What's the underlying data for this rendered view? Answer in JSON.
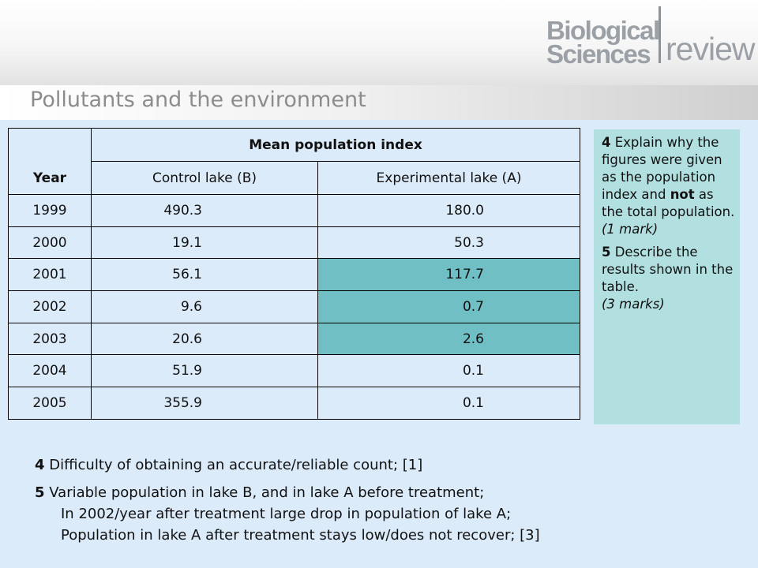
{
  "slide": {
    "title": "Pollutants and the environment",
    "logo": {
      "line1": "Biological",
      "line2": "Sciences",
      "word": "review"
    }
  },
  "table": {
    "year_header": "Year",
    "group_header": "Mean population index",
    "col_b": "Control lake (B)",
    "col_a": "Experimental lake (A)",
    "rows": [
      {
        "year": "1999",
        "b": "490.3",
        "a": "180.0",
        "highlight": false
      },
      {
        "year": "2000",
        "b": "19.1",
        "a": "50.3",
        "highlight": false
      },
      {
        "year": "2001",
        "b": "56.1",
        "a": "117.7",
        "highlight": true
      },
      {
        "year": "2002",
        "b": "9.6",
        "a": "0.7",
        "highlight": true
      },
      {
        "year": "2003",
        "b": "20.6",
        "a": "2.6",
        "highlight": true
      },
      {
        "year": "2004",
        "b": "51.9",
        "a": "0.1",
        "highlight": false
      },
      {
        "year": "2005",
        "b": "355.9",
        "a": "0.1",
        "highlight": false
      }
    ],
    "highlight_color": "#6fbfc4"
  },
  "questions": {
    "q4_num": "4",
    "q4_text_a": " Explain why the figures were given as the population index and ",
    "q4_bold": "not",
    "q4_text_b": " as the total population.",
    "q4_marks": "(1 mark)",
    "q5_num": "5",
    "q5_text": " Describe the results shown in the table.",
    "q5_marks": "(3 marks)"
  },
  "answers": {
    "a4_num": "4",
    "a4_text": " Difficulty of obtaining an accurate/reliable count; [1]",
    "a5_num": "5",
    "a5_line1": " Variable population in lake B, and in lake A before treatment;",
    "a5_line2": "In 2002/year after treatment large drop in population of lake A;",
    "a5_line3": "Population in lake A after treatment stays low/does not recover;  [3]"
  }
}
